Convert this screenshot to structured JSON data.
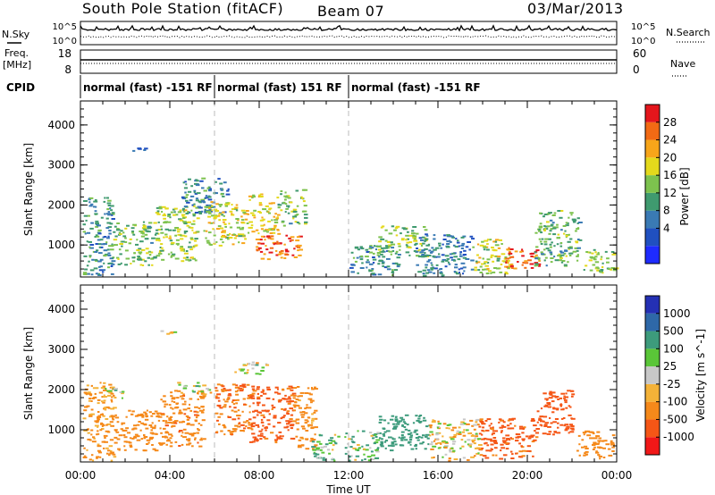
{
  "header": {
    "station": "South Pole Station (fitACF)",
    "beam": "Beam 07",
    "date": "03/Mar/2013"
  },
  "left_labels": {
    "nsky": "N.Sky",
    "freq_top": "Freq.",
    "freq_unit": "[MHz]",
    "cpid": "CPID"
  },
  "right_labels": {
    "nsearch": "N.Search",
    "nave": "Nave"
  },
  "noise_panel": {
    "left_ticks": [
      "10^5",
      "10^0"
    ],
    "right_ticks": [
      "10^5",
      "10^0"
    ]
  },
  "freq_panel": {
    "left_ticks": [
      "18",
      "8"
    ],
    "right_ticks": [
      "60",
      "0"
    ]
  },
  "cpid_segments": [
    {
      "label": "normal (fast) -151 RF",
      "start_hr": 0,
      "end_hr": 6
    },
    {
      "label": "normal (fast) 151 RF",
      "start_hr": 6,
      "end_hr": 12
    },
    {
      "label": "normal (fast) -151 RF",
      "start_hr": 12,
      "end_hr": 24
    }
  ],
  "x_axis": {
    "label": "Time UT",
    "ticks": [
      "00:00",
      "04:00",
      "08:00",
      "12:00",
      "16:00",
      "20:00",
      "00:00"
    ]
  },
  "colors": {
    "power_scale": [
      "#1e2bff",
      "#2050c0",
      "#3a7ab4",
      "#3f9a6f",
      "#7dc24e",
      "#e4d91c",
      "#f7a51a",
      "#f26a14",
      "#e4161c"
    ],
    "velocity_scale": [
      "#f11818",
      "#f55616",
      "#f5891a",
      "#f4b238",
      "#c8c8c8",
      "#5ac638",
      "#3d9b7c",
      "#2e68a8",
      "#2430b4"
    ]
  },
  "chart_data": [
    {
      "type": "heatmap",
      "name_shown": "",
      "ylabel": "Slant Range [km]",
      "xlabel": "",
      "xlim_hours": [
        0,
        24
      ],
      "ylim": [
        200,
        4600
      ],
      "yticks": [
        "1000",
        "2000",
        "3000",
        "4000"
      ],
      "colorbar": {
        "label": "Power [dB]",
        "ticks": [
          "28",
          "24",
          "20",
          "16",
          "12",
          "8",
          "4"
        ],
        "range": [
          0,
          30
        ]
      },
      "echo_regions": [
        {
          "t0": 0.1,
          "t1": 1.4,
          "r0": 250,
          "r1": 2200,
          "level": 10
        },
        {
          "t0": 1.4,
          "t1": 3.2,
          "r0": 500,
          "r1": 1600,
          "level": 14
        },
        {
          "t0": 2.3,
          "t1": 2.9,
          "r0": 3350,
          "r1": 3500,
          "level": 6
        },
        {
          "t0": 3.2,
          "t1": 5.2,
          "r0": 600,
          "r1": 2000,
          "level": 16
        },
        {
          "t0": 4.5,
          "t1": 6.6,
          "r0": 1800,
          "r1": 2700,
          "level": 9
        },
        {
          "t0": 5.5,
          "t1": 7.5,
          "r0": 1000,
          "r1": 2100,
          "level": 18
        },
        {
          "t0": 7.5,
          "t1": 8.8,
          "r0": 1300,
          "r1": 2300,
          "level": 19
        },
        {
          "t0": 7.8,
          "t1": 9.8,
          "r0": 650,
          "r1": 1300,
          "level": 26
        },
        {
          "t0": 8.8,
          "t1": 10.0,
          "r0": 1500,
          "r1": 2400,
          "level": 14
        },
        {
          "t0": 12.0,
          "t1": 14.2,
          "r0": 250,
          "r1": 1000,
          "level": 10
        },
        {
          "t0": 13.3,
          "t1": 15.4,
          "r0": 700,
          "r1": 1500,
          "level": 15
        },
        {
          "t0": 15.0,
          "t1": 17.5,
          "r0": 250,
          "r1": 1300,
          "level": 8
        },
        {
          "t0": 17.5,
          "t1": 19.2,
          "r0": 300,
          "r1": 1200,
          "level": 17
        },
        {
          "t0": 19.0,
          "t1": 20.5,
          "r0": 400,
          "r1": 950,
          "level": 27
        },
        {
          "t0": 20.3,
          "t1": 22.3,
          "r0": 500,
          "r1": 1900,
          "level": 13
        },
        {
          "t0": 22.5,
          "t1": 24.0,
          "r0": 300,
          "r1": 900,
          "level": 15
        }
      ]
    },
    {
      "type": "heatmap",
      "name_shown": "",
      "ylabel": "Slant Range [km]",
      "xlabel": "Time UT",
      "xlim_hours": [
        0,
        24
      ],
      "ylim": [
        200,
        4600
      ],
      "yticks": [
        "1000",
        "2000",
        "3000",
        "4000"
      ],
      "colorbar": {
        "label": "Velocity [m s^-1]",
        "ticks": [
          "1000",
          "500",
          "100",
          "25",
          "-25",
          "-100",
          "-500",
          "-1000"
        ],
        "range": [
          -1000,
          1000
        ]
      },
      "echo_regions": [
        {
          "t0": 0.1,
          "t1": 1.5,
          "r0": 250,
          "r1": 2200,
          "level": -150
        },
        {
          "t0": 1.0,
          "t1": 2.0,
          "r0": 1800,
          "r1": 2100,
          "level": 0
        },
        {
          "t0": 1.5,
          "t1": 3.5,
          "r0": 500,
          "r1": 1500,
          "level": -300
        },
        {
          "t0": 3.3,
          "t1": 4.2,
          "r0": 3400,
          "r1": 3500,
          "level": 0
        },
        {
          "t0": 3.5,
          "t1": 5.5,
          "r0": 600,
          "r1": 2000,
          "level": -400
        },
        {
          "t0": 4.3,
          "t1": 5.8,
          "r0": 1900,
          "r1": 2200,
          "level": 0
        },
        {
          "t0": 6.0,
          "t1": 7.7,
          "r0": 900,
          "r1": 2200,
          "level": -450
        },
        {
          "t0": 7.5,
          "t1": 9.5,
          "r0": 700,
          "r1": 2100,
          "level": -600
        },
        {
          "t0": 6.8,
          "t1": 8.3,
          "r0": 2400,
          "r1": 2700,
          "level": 0
        },
        {
          "t0": 9.5,
          "t1": 10.5,
          "r0": 500,
          "r1": 2100,
          "level": -200
        },
        {
          "t0": 10.3,
          "t1": 11.5,
          "r0": 250,
          "r1": 900,
          "level": 60
        },
        {
          "t0": 11.8,
          "t1": 13.3,
          "r0": 250,
          "r1": 1000,
          "level": 80
        },
        {
          "t0": 13.3,
          "t1": 15.6,
          "r0": 500,
          "r1": 1400,
          "level": 250
        },
        {
          "t0": 15.6,
          "t1": 17.8,
          "r0": 250,
          "r1": 1300,
          "level": -40
        },
        {
          "t0": 17.8,
          "t1": 20.4,
          "r0": 300,
          "r1": 1300,
          "level": -550
        },
        {
          "t0": 20.4,
          "t1": 22.0,
          "r0": 900,
          "r1": 2000,
          "level": -700
        },
        {
          "t0": 22.2,
          "t1": 23.8,
          "r0": 300,
          "r1": 1000,
          "level": -300
        }
      ]
    }
  ]
}
